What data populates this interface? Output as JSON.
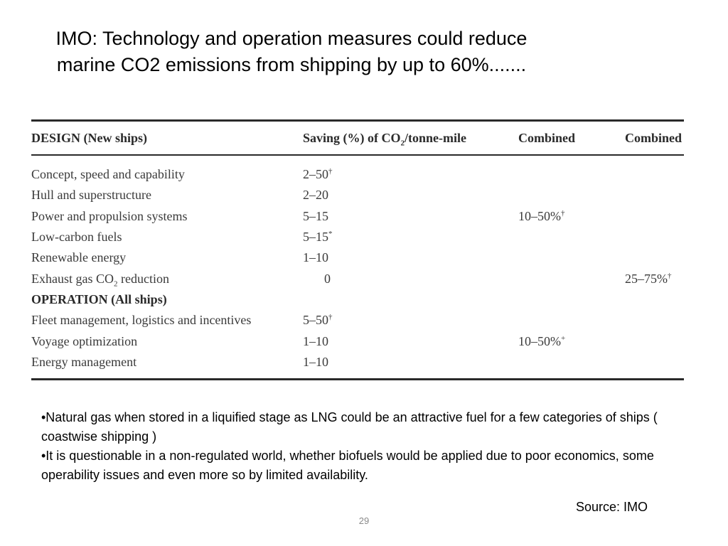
{
  "title": {
    "line1": "IMO: Technology and operation measures could reduce",
    "line2": "marine CO2 emissions from shipping by up to 60%......."
  },
  "table": {
    "headers": {
      "col1": "DESIGN (New ships)",
      "col2_pre": "Saving (%) of CO",
      "col2_sub": "2",
      "col2_post": "/tonne-mile",
      "col3": "Combined",
      "col4": "Combined"
    },
    "rows": [
      {
        "measure": "Concept, speed and capability",
        "saving": "2–50",
        "saving_mark": "†",
        "combined": "",
        "combined_mark": "",
        "combined2": "",
        "combined2_mark": ""
      },
      {
        "measure": "Hull and superstructure",
        "saving": "2–20",
        "saving_mark": "",
        "combined": "",
        "combined_mark": "",
        "combined2": "",
        "combined2_mark": ""
      },
      {
        "measure": "Power and propulsion systems",
        "saving": "5–15",
        "saving_mark": "",
        "combined": "10–50%",
        "combined_mark": "†",
        "combined2": "",
        "combined2_mark": ""
      },
      {
        "measure": "Low-carbon fuels",
        "saving": "5–15",
        "saving_mark": "*",
        "combined": "",
        "combined_mark": "",
        "combined2": "",
        "combined2_mark": ""
      },
      {
        "measure": "Renewable energy",
        "saving": "1–10",
        "saving_mark": "",
        "combined": "",
        "combined_mark": "",
        "combined2": "",
        "combined2_mark": ""
      },
      {
        "measure_pre": "Exhaust gas CO",
        "measure_sub": "2",
        "measure_post": " reduction",
        "saving": "0",
        "saving_mark": "",
        "combined": "",
        "combined_mark": "",
        "combined2": "25–75%",
        "combined2_mark": "†"
      },
      {
        "section": "OPERATION (All ships)"
      },
      {
        "measure": "Fleet management, logistics and incentives",
        "saving": "5–50",
        "saving_mark": "†",
        "combined": "",
        "combined_mark": "",
        "combined2": "",
        "combined2_mark": ""
      },
      {
        "measure": "Voyage optimization",
        "saving": "1–10",
        "saving_mark": "",
        "combined": "10–50%",
        "combined_mark": "+",
        "combined2": "",
        "combined2_mark": ""
      },
      {
        "measure": "Energy management",
        "saving": "1–10",
        "saving_mark": "",
        "combined": "",
        "combined_mark": "",
        "combined2": "",
        "combined2_mark": ""
      }
    ]
  },
  "bullets": [
    "•Natural gas when stored in a liquified stage as LNG could be an attractive fuel for a few categories of ships ( coastwise shipping )",
    "•It is questionable in a non-regulated world, whether biofuels would be applied due to poor economics, some operability issues and even more so by limited availability."
  ],
  "source": "Source: IMO",
  "page_number": "29"
}
